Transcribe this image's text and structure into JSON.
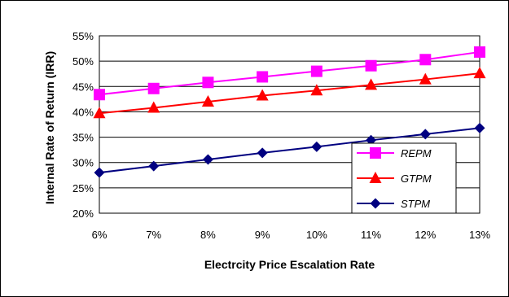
{
  "chart_data": {
    "type": "line",
    "title": "",
    "xlabel": "Electrcity Price Escalation Rate",
    "ylabel": "Internal Rate of Return (IRR)",
    "categories": [
      "6%",
      "7%",
      "8%",
      "9%",
      "10%",
      "11%",
      "12%",
      "13%"
    ],
    "x": [
      6,
      7,
      8,
      9,
      10,
      11,
      12,
      13
    ],
    "ylim": [
      20,
      55
    ],
    "yticks": [
      "20%",
      "25%",
      "30%",
      "35%",
      "40%",
      "45%",
      "50%",
      "55%"
    ],
    "y_tick_values": [
      20,
      25,
      30,
      35,
      40,
      45,
      50,
      55
    ],
    "grid": true,
    "legend_position": "bottom-right",
    "series": [
      {
        "name": "REPM",
        "color": "#ff00ff",
        "marker": "square",
        "values": [
          43.4,
          44.6,
          45.8,
          46.9,
          48.0,
          49.1,
          50.3,
          51.8
        ]
      },
      {
        "name": "GTPM",
        "color": "#ff0000",
        "marker": "triangle",
        "values": [
          39.7,
          40.8,
          42.0,
          43.2,
          44.2,
          45.3,
          46.4,
          47.6
        ]
      },
      {
        "name": "STPM",
        "color": "#000080",
        "marker": "diamond",
        "values": [
          28.0,
          29.3,
          30.6,
          31.9,
          33.1,
          34.4,
          35.6,
          36.8
        ]
      }
    ]
  }
}
